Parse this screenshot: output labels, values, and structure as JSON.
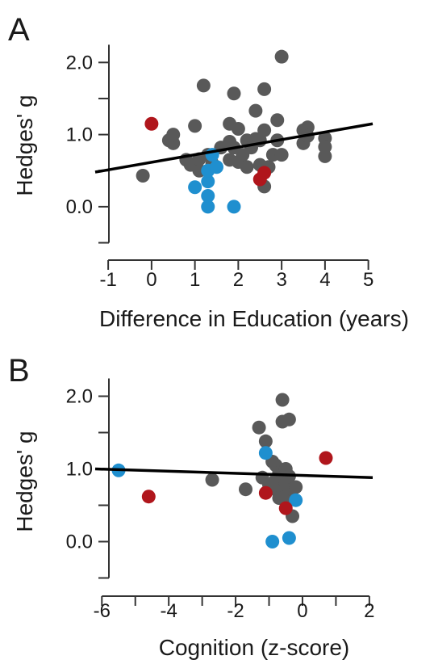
{
  "colors": {
    "grey": "#595959",
    "blue": "#1f8fcf",
    "red": "#b0161c",
    "line": "#000000"
  },
  "chart_data": [
    {
      "type": "scatter",
      "panel": "A",
      "xlabel": "Difference in Education (years)",
      "ylabel": "Hedges' g",
      "xlim": [
        -1.3,
        5.1
      ],
      "ylim": [
        -0.55,
        2.25
      ],
      "xticks": [
        -1,
        0,
        1,
        2,
        3,
        4,
        5
      ],
      "xtick_labels": [
        "-1",
        "0",
        "1",
        "2",
        "3",
        "4",
        "5"
      ],
      "yticks": [
        -0.5,
        0.0,
        0.5,
        1.0,
        1.5,
        2.0
      ],
      "ytick_labels": [
        "",
        "0.0",
        "",
        "1.0",
        "",
        "2.0"
      ],
      "grid": false,
      "fit_line": {
        "x": [
          -1.3,
          5.1
        ],
        "y": [
          0.48,
          1.15
        ]
      },
      "series": [
        {
          "color": "grey",
          "points": [
            [
              -0.2,
              0.43
            ],
            [
              0.4,
              0.92
            ],
            [
              0.5,
              0.88
            ],
            [
              0.5,
              1.0
            ],
            [
              0.8,
              0.65
            ],
            [
              0.9,
              0.58
            ],
            [
              1.0,
              1.12
            ],
            [
              1.1,
              0.5
            ],
            [
              1.1,
              0.66
            ],
            [
              1.2,
              1.68
            ],
            [
              1.3,
              0.72
            ],
            [
              1.4,
              0.6
            ],
            [
              1.6,
              0.82
            ],
            [
              1.8,
              0.9
            ],
            [
              1.8,
              0.65
            ],
            [
              1.8,
              1.15
            ],
            [
              1.9,
              1.57
            ],
            [
              1.9,
              0.82
            ],
            [
              2.0,
              1.08
            ],
            [
              2.0,
              0.62
            ],
            [
              2.1,
              0.72
            ],
            [
              2.2,
              0.55
            ],
            [
              2.2,
              0.92
            ],
            [
              2.3,
              0.82
            ],
            [
              2.4,
              1.33
            ],
            [
              2.4,
              0.94
            ],
            [
              2.5,
              0.58
            ],
            [
              2.5,
              0.92
            ],
            [
              2.6,
              1.06
            ],
            [
              2.6,
              0.28
            ],
            [
              2.6,
              1.63
            ],
            [
              2.7,
              0.55
            ],
            [
              2.8,
              0.72
            ],
            [
              2.9,
              1.2
            ],
            [
              2.9,
              0.92
            ],
            [
              3.0,
              2.08
            ],
            [
              3.0,
              0.72
            ],
            [
              3.5,
              1.06
            ],
            [
              3.5,
              0.88
            ],
            [
              3.6,
              1.1
            ],
            [
              3.6,
              0.98
            ],
            [
              4.0,
              0.95
            ],
            [
              4.0,
              0.83
            ],
            [
              4.0,
              0.7
            ]
          ]
        },
        {
          "color": "blue",
          "points": [
            [
              1.0,
              0.27
            ],
            [
              1.3,
              0.0
            ],
            [
              1.3,
              0.15
            ],
            [
              1.3,
              0.35
            ],
            [
              1.3,
              0.5
            ],
            [
              1.4,
              0.72
            ],
            [
              1.5,
              0.55
            ],
            [
              1.9,
              0.0
            ]
          ]
        },
        {
          "color": "red",
          "points": [
            [
              0.0,
              1.15
            ],
            [
              2.5,
              0.38
            ],
            [
              2.6,
              0.47
            ]
          ]
        }
      ]
    },
    {
      "type": "scatter",
      "panel": "B",
      "xlabel": "Cognition (z-score)",
      "ylabel": "Hedges' g",
      "xlim": [
        -6.2,
        2.1
      ],
      "ylim": [
        -0.55,
        2.25
      ],
      "xticks": [
        -6,
        -5,
        -4,
        -3,
        -2,
        -1,
        0,
        1,
        2
      ],
      "xtick_labels": [
        "-6",
        "",
        "-4",
        "",
        "-2",
        "",
        "0",
        "",
        "2"
      ],
      "yticks": [
        -0.5,
        0.0,
        0.5,
        1.0,
        1.5,
        2.0
      ],
      "ytick_labels": [
        "",
        "0.0",
        "",
        "1.0",
        "",
        "2.0"
      ],
      "grid": false,
      "fit_line": {
        "x": [
          -6.2,
          2.1
        ],
        "y": [
          1.0,
          0.88
        ]
      },
      "series": [
        {
          "color": "grey",
          "points": [
            [
              -2.7,
              0.85
            ],
            [
              -1.7,
              0.72
            ],
            [
              -1.3,
              1.57
            ],
            [
              -1.1,
              1.38
            ],
            [
              -1.2,
              0.88
            ],
            [
              -1.0,
              0.78
            ],
            [
              -0.9,
              1.1
            ],
            [
              -0.8,
              1.05
            ],
            [
              -0.8,
              0.85
            ],
            [
              -0.75,
              0.7
            ],
            [
              -0.7,
              0.95
            ],
            [
              -0.7,
              0.6
            ],
            [
              -0.6,
              1.95
            ],
            [
              -0.6,
              1.65
            ],
            [
              -0.5,
              1.0
            ],
            [
              -0.5,
              0.8
            ],
            [
              -0.5,
              0.62
            ],
            [
              -0.4,
              1.68
            ],
            [
              -0.4,
              0.9
            ],
            [
              -0.3,
              0.72
            ],
            [
              -0.3,
              0.35
            ],
            [
              -0.2,
              0.75
            ]
          ]
        },
        {
          "color": "blue",
          "points": [
            [
              -5.5,
              0.98
            ],
            [
              -1.1,
              1.22
            ],
            [
              -0.9,
              0.0
            ],
            [
              -0.4,
              0.05
            ],
            [
              -0.2,
              0.57
            ]
          ]
        },
        {
          "color": "red",
          "points": [
            [
              -4.6,
              0.62
            ],
            [
              -1.1,
              0.67
            ],
            [
              -0.5,
              0.46
            ],
            [
              0.7,
              1.15
            ]
          ]
        }
      ]
    }
  ]
}
